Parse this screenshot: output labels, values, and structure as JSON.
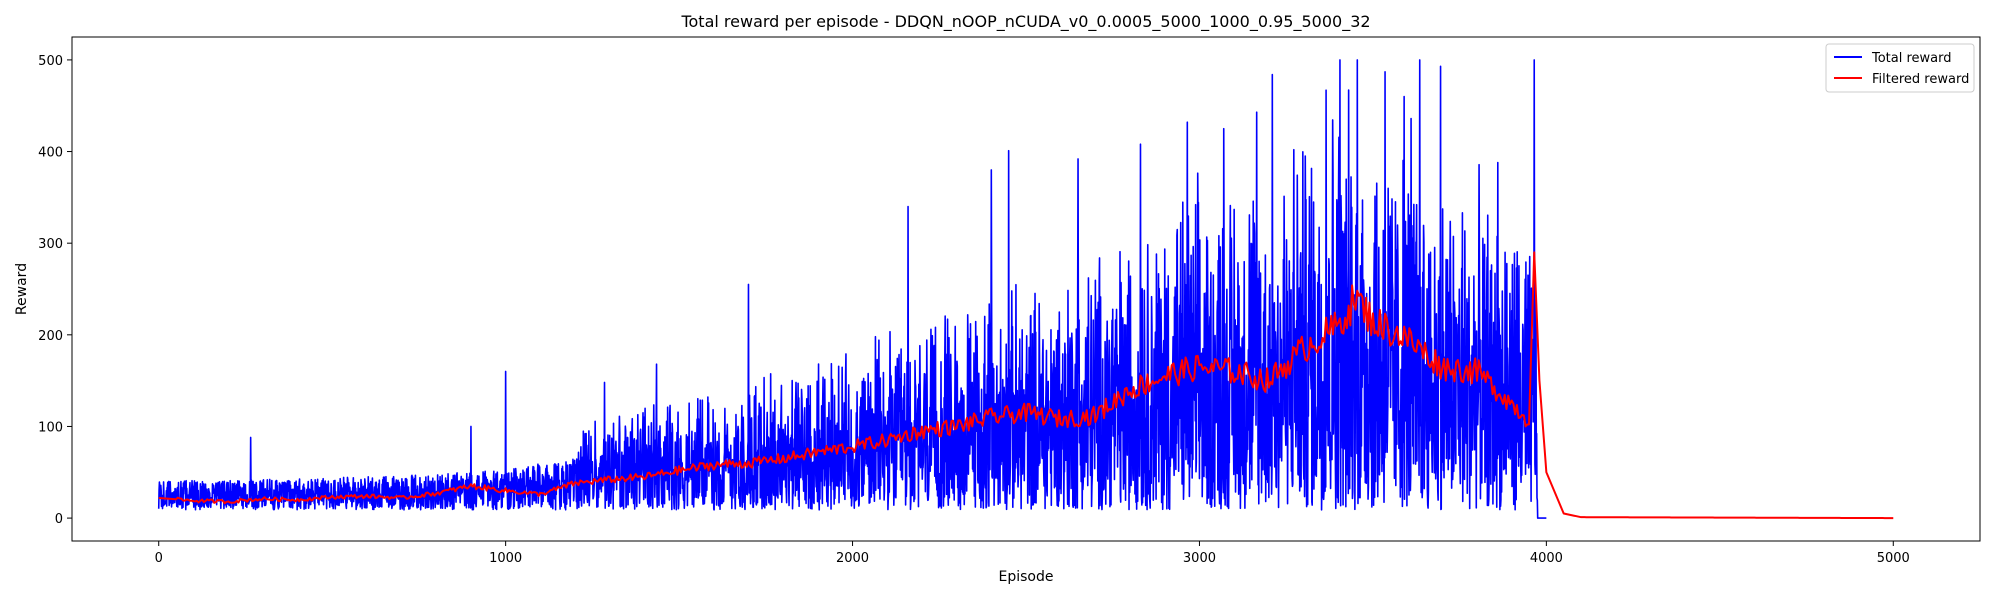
{
  "chart_data": {
    "type": "line",
    "title": "Total reward per episode - DDQN_nOOP_nCUDA_v0_0.0005_5000_1000_0.95_5000_32",
    "xlabel": "Episode",
    "ylabel": "Reward",
    "xlim": [
      -250,
      5250
    ],
    "ylim": [
      -25,
      525
    ],
    "xticks": [
      0,
      1000,
      2000,
      3000,
      4000,
      5000
    ],
    "yticks": [
      0,
      100,
      200,
      300,
      400,
      500
    ],
    "grid": false,
    "legend_position": "top-right",
    "series": [
      {
        "name": "Total reward",
        "color": "#0000ff",
        "trend": {
          "episodes": [
            0,
            200,
            500,
            800,
            1000,
            1200,
            1500,
            1800,
            2000,
            2200,
            2500,
            2800,
            3000,
            3200,
            3400,
            3500,
            3600,
            3700,
            3800,
            3950
          ],
          "mean": [
            20,
            20,
            22,
            24,
            28,
            35,
            50,
            62,
            72,
            82,
            100,
            125,
            145,
            155,
            190,
            175,
            160,
            150,
            145,
            120
          ]
        },
        "spikes": [
          {
            "x": 3405,
            "y": 500
          },
          {
            "x": 3455,
            "y": 500
          },
          {
            "x": 3535,
            "y": 500
          },
          {
            "x": 3635,
            "y": 500
          },
          {
            "x": 3965,
            "y": 500
          },
          {
            "x": 3210,
            "y": 484
          },
          {
            "x": 3695,
            "y": 493
          },
          {
            "x": 3535,
            "y": 487
          },
          {
            "x": 3365,
            "y": 467
          },
          {
            "x": 3590,
            "y": 460
          },
          {
            "x": 3165,
            "y": 443
          },
          {
            "x": 3070,
            "y": 425
          },
          {
            "x": 2965,
            "y": 432
          },
          {
            "x": 2830,
            "y": 408
          },
          {
            "x": 3610,
            "y": 436
          },
          {
            "x": 2450,
            "y": 401
          },
          {
            "x": 2650,
            "y": 392
          },
          {
            "x": 3860,
            "y": 388
          },
          {
            "x": 2400,
            "y": 380
          },
          {
            "x": 2160,
            "y": 340
          },
          {
            "x": 1700,
            "y": 255
          },
          {
            "x": 1435,
            "y": 168
          },
          {
            "x": 1000,
            "y": 160
          },
          {
            "x": 1285,
            "y": 148
          },
          {
            "x": 265,
            "y": 88
          },
          {
            "x": 900,
            "y": 100
          }
        ],
        "drop_to_zero_at": 3975,
        "zero_until": 4000
      },
      {
        "name": "Filtered reward",
        "color": "#ff0000",
        "x": [
          0,
          100,
          200,
          300,
          400,
          500,
          600,
          700,
          800,
          900,
          1000,
          1100,
          1200,
          1300,
          1400,
          1500,
          1600,
          1700,
          1800,
          1900,
          2000,
          2100,
          2200,
          2300,
          2400,
          2500,
          2600,
          2700,
          2800,
          2900,
          3000,
          3100,
          3200,
          3300,
          3400,
          3450,
          3500,
          3550,
          3600,
          3700,
          3800,
          3900,
          3950,
          3965,
          3980,
          4000,
          4050,
          4100,
          5000
        ],
        "y": [
          22,
          19,
          18,
          21,
          20,
          23,
          24,
          22,
          27,
          35,
          30,
          26,
          38,
          42,
          45,
          52,
          58,
          60,
          65,
          72,
          78,
          85,
          95,
          100,
          110,
          115,
          108,
          112,
          140,
          155,
          165,
          160,
          150,
          185,
          210,
          240,
          215,
          205,
          195,
          165,
          160,
          125,
          105,
          290,
          150,
          50,
          5,
          1,
          0
        ]
      }
    ]
  }
}
